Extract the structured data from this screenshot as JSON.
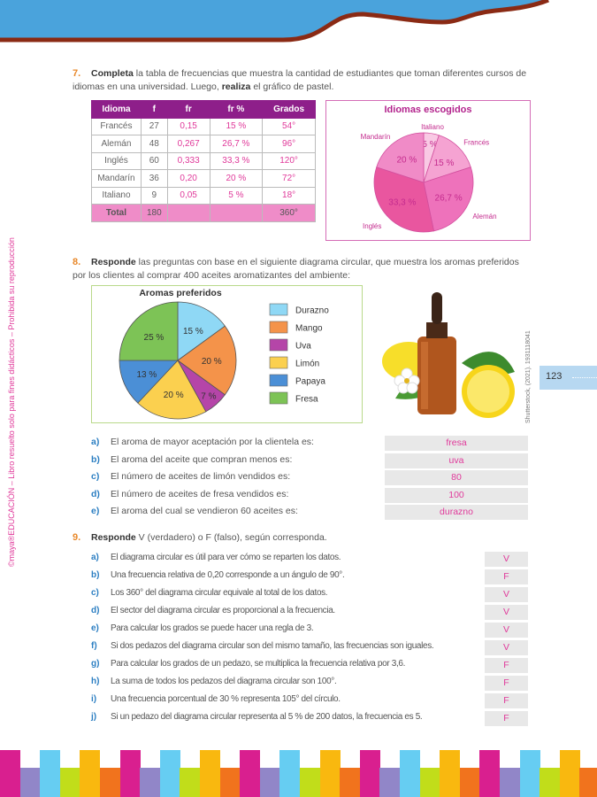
{
  "header": {
    "colors": {
      "band": "#4aa3dc",
      "wave": "#8a2a14"
    }
  },
  "sidebar": {
    "brand": "maya",
    "text": "©maya®EDUCACIÓN – Libro resuelto solo para fines didácticos – Prohibida su reproducción"
  },
  "page_number": "123",
  "photo_credit": "Shutterstock, (2021). 1931118041",
  "exercise7": {
    "number": "7.",
    "lead": "Completa",
    "text1": " la tabla de frecuencias que muestra la cantidad de estudiantes que toman diferentes cursos de idiomas en una universidad. Luego, ",
    "bold2": "realiza",
    "text2": " el gráfico de pastel.",
    "table": {
      "headers": [
        "Idioma",
        "f",
        "fr",
        "fr %",
        "Grados"
      ],
      "rows": [
        [
          "Francés",
          "27",
          "0,15",
          "15 %",
          "54°"
        ],
        [
          "Alemán",
          "48",
          "0,267",
          "26,7 %",
          "96°"
        ],
        [
          "Inglés",
          "60",
          "0,333",
          "33,3 %",
          "120°"
        ],
        [
          "Mandarín",
          "36",
          "0,20",
          "20 %",
          "72°"
        ],
        [
          "Italiano",
          "9",
          "0,05",
          "5 %",
          "18°"
        ]
      ],
      "total": [
        "Total",
        "180",
        "",
        "",
        "360°"
      ]
    }
  },
  "exercise8": {
    "number": "8.",
    "lead": "Responde",
    "text": " las preguntas con base en el siguiente diagrama circular, que muestra los aromas preferidos por los clientes al comprar 400 aceites aromatizantes del ambiente:",
    "questions": [
      {
        "letter": "a)",
        "text": "El aroma de mayor aceptación por la clientela es:",
        "answer": "fresa"
      },
      {
        "letter": "b)",
        "text": "El aroma del aceite que compran menos es:",
        "answer": "uva"
      },
      {
        "letter": "c)",
        "text": "El número de aceites de limón vendidos es:",
        "answer": "80"
      },
      {
        "letter": "d)",
        "text": "El número de aceites de fresa vendidos es:",
        "answer": "100"
      },
      {
        "letter": "e)",
        "text": "El aroma del cual se vendieron 60 aceites es:",
        "answer": "durazno"
      }
    ]
  },
  "exercise9": {
    "number": "9.",
    "lead": "Responde",
    "text": " V (verdadero) o F (falso), según corresponda.",
    "questions": [
      {
        "letter": "a)",
        "text": "El diagrama circular es útil para ver cómo se reparten los datos.",
        "answer": "V"
      },
      {
        "letter": "b)",
        "text": "Una frecuencia relativa de 0,20 corresponde a un ángulo de 90°.",
        "answer": "F"
      },
      {
        "letter": "c)",
        "text": "Los 360° del diagrama circular equivale al total de los datos.",
        "answer": "V"
      },
      {
        "letter": "d)",
        "text": "El sector del diagrama circular es proporcional a la frecuencia.",
        "answer": "V"
      },
      {
        "letter": "e)",
        "text": "Para calcular los grados se puede hacer una regla de 3.",
        "answer": "V"
      },
      {
        "letter": "f)",
        "text": "Si dos pedazos del diagrama circular son del mismo tamaño, las frecuencias son iguales.",
        "answer": "V"
      },
      {
        "letter": "g)",
        "text": "Para calcular los grados de un pedazo, se multiplica la frecuencia relativa por 3,6.",
        "answer": "F"
      },
      {
        "letter": "h)",
        "text": "La suma de todos los pedazos del diagrama circular son 100°.",
        "answer": "F"
      },
      {
        "letter": "i)",
        "text": "Una frecuencia porcentual de 30 % representa 105° del círculo.",
        "answer": "F"
      },
      {
        "letter": "j)",
        "text": "Si un pedazo del diagrama circular representa al 5 % de 200 datos, la frecuencia es 5.",
        "answer": "F"
      }
    ]
  },
  "chart_data": [
    {
      "type": "pie",
      "title": "Idiomas escogidos",
      "categories": [
        "Italiano",
        "Francés",
        "Alemán",
        "Inglés",
        "Mandarín"
      ],
      "values": [
        5,
        15,
        26.7,
        33.3,
        20
      ],
      "labels": [
        "5 %",
        "15 %",
        "26,7 %",
        "33,3 %",
        "20 %"
      ],
      "colors": [
        "#f9c9e4",
        "#f5a3d2",
        "#ee72bb",
        "#e9569f",
        "#f08bc7"
      ]
    },
    {
      "type": "pie",
      "title": "Aromas preferidos",
      "categories": [
        "Durazno",
        "Mango",
        "Uva",
        "Limón",
        "Papaya",
        "Fresa"
      ],
      "values": [
        15,
        20,
        7,
        20,
        13,
        25
      ],
      "labels": [
        "15 %",
        "20 %",
        "7 %",
        "20 %",
        "13 %",
        "25 %"
      ],
      "colors": [
        "#8fd8f5",
        "#f4934a",
        "#b545a8",
        "#fbd04f",
        "#4b8fd6",
        "#7dc356"
      ],
      "legend": "right"
    }
  ],
  "footer": {
    "colors": [
      "#d91f8f",
      "#9186c8",
      "#66cdf2",
      "#c1dd1a",
      "#f9b80f",
      "#f1731d"
    ]
  }
}
